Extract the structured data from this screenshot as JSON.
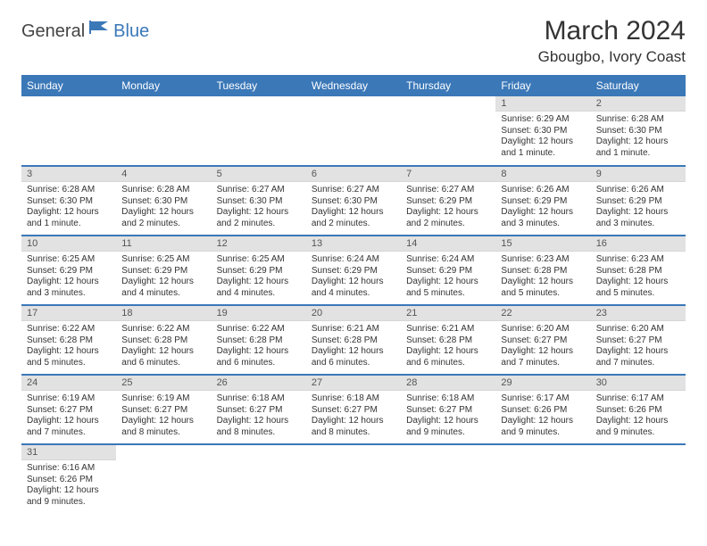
{
  "colors": {
    "accent": "#3b78b8",
    "header_text": "#ffffff",
    "daybar_bg": "#e2e2e2",
    "text": "#333333",
    "row_separator": "#3b78b8"
  },
  "logo": {
    "text1": "General",
    "text2": "Blue"
  },
  "title": "March 2024",
  "location": "Gbougbo, Ivory Coast",
  "weekdays": [
    "Sunday",
    "Monday",
    "Tuesday",
    "Wednesday",
    "Thursday",
    "Friday",
    "Saturday"
  ],
  "layout": {
    "columns": 7,
    "rows": 6,
    "first_weekday_index": 5,
    "days_in_month": 31
  },
  "days": [
    {
      "n": 1,
      "sunrise": "6:29 AM",
      "sunset": "6:30 PM",
      "daylight": "12 hours and 1 minute."
    },
    {
      "n": 2,
      "sunrise": "6:28 AM",
      "sunset": "6:30 PM",
      "daylight": "12 hours and 1 minute."
    },
    {
      "n": 3,
      "sunrise": "6:28 AM",
      "sunset": "6:30 PM",
      "daylight": "12 hours and 1 minute."
    },
    {
      "n": 4,
      "sunrise": "6:28 AM",
      "sunset": "6:30 PM",
      "daylight": "12 hours and 2 minutes."
    },
    {
      "n": 5,
      "sunrise": "6:27 AM",
      "sunset": "6:30 PM",
      "daylight": "12 hours and 2 minutes."
    },
    {
      "n": 6,
      "sunrise": "6:27 AM",
      "sunset": "6:30 PM",
      "daylight": "12 hours and 2 minutes."
    },
    {
      "n": 7,
      "sunrise": "6:27 AM",
      "sunset": "6:29 PM",
      "daylight": "12 hours and 2 minutes."
    },
    {
      "n": 8,
      "sunrise": "6:26 AM",
      "sunset": "6:29 PM",
      "daylight": "12 hours and 3 minutes."
    },
    {
      "n": 9,
      "sunrise": "6:26 AM",
      "sunset": "6:29 PM",
      "daylight": "12 hours and 3 minutes."
    },
    {
      "n": 10,
      "sunrise": "6:25 AM",
      "sunset": "6:29 PM",
      "daylight": "12 hours and 3 minutes."
    },
    {
      "n": 11,
      "sunrise": "6:25 AM",
      "sunset": "6:29 PM",
      "daylight": "12 hours and 4 minutes."
    },
    {
      "n": 12,
      "sunrise": "6:25 AM",
      "sunset": "6:29 PM",
      "daylight": "12 hours and 4 minutes."
    },
    {
      "n": 13,
      "sunrise": "6:24 AM",
      "sunset": "6:29 PM",
      "daylight": "12 hours and 4 minutes."
    },
    {
      "n": 14,
      "sunrise": "6:24 AM",
      "sunset": "6:29 PM",
      "daylight": "12 hours and 5 minutes."
    },
    {
      "n": 15,
      "sunrise": "6:23 AM",
      "sunset": "6:28 PM",
      "daylight": "12 hours and 5 minutes."
    },
    {
      "n": 16,
      "sunrise": "6:23 AM",
      "sunset": "6:28 PM",
      "daylight": "12 hours and 5 minutes."
    },
    {
      "n": 17,
      "sunrise": "6:22 AM",
      "sunset": "6:28 PM",
      "daylight": "12 hours and 5 minutes."
    },
    {
      "n": 18,
      "sunrise": "6:22 AM",
      "sunset": "6:28 PM",
      "daylight": "12 hours and 6 minutes."
    },
    {
      "n": 19,
      "sunrise": "6:22 AM",
      "sunset": "6:28 PM",
      "daylight": "12 hours and 6 minutes."
    },
    {
      "n": 20,
      "sunrise": "6:21 AM",
      "sunset": "6:28 PM",
      "daylight": "12 hours and 6 minutes."
    },
    {
      "n": 21,
      "sunrise": "6:21 AM",
      "sunset": "6:28 PM",
      "daylight": "12 hours and 6 minutes."
    },
    {
      "n": 22,
      "sunrise": "6:20 AM",
      "sunset": "6:27 PM",
      "daylight": "12 hours and 7 minutes."
    },
    {
      "n": 23,
      "sunrise": "6:20 AM",
      "sunset": "6:27 PM",
      "daylight": "12 hours and 7 minutes."
    },
    {
      "n": 24,
      "sunrise": "6:19 AM",
      "sunset": "6:27 PM",
      "daylight": "12 hours and 7 minutes."
    },
    {
      "n": 25,
      "sunrise": "6:19 AM",
      "sunset": "6:27 PM",
      "daylight": "12 hours and 8 minutes."
    },
    {
      "n": 26,
      "sunrise": "6:18 AM",
      "sunset": "6:27 PM",
      "daylight": "12 hours and 8 minutes."
    },
    {
      "n": 27,
      "sunrise": "6:18 AM",
      "sunset": "6:27 PM",
      "daylight": "12 hours and 8 minutes."
    },
    {
      "n": 28,
      "sunrise": "6:18 AM",
      "sunset": "6:27 PM",
      "daylight": "12 hours and 9 minutes."
    },
    {
      "n": 29,
      "sunrise": "6:17 AM",
      "sunset": "6:26 PM",
      "daylight": "12 hours and 9 minutes."
    },
    {
      "n": 30,
      "sunrise": "6:17 AM",
      "sunset": "6:26 PM",
      "daylight": "12 hours and 9 minutes."
    },
    {
      "n": 31,
      "sunrise": "6:16 AM",
      "sunset": "6:26 PM",
      "daylight": "12 hours and 9 minutes."
    }
  ],
  "labels": {
    "sunrise": "Sunrise:",
    "sunset": "Sunset:",
    "daylight": "Daylight:"
  }
}
